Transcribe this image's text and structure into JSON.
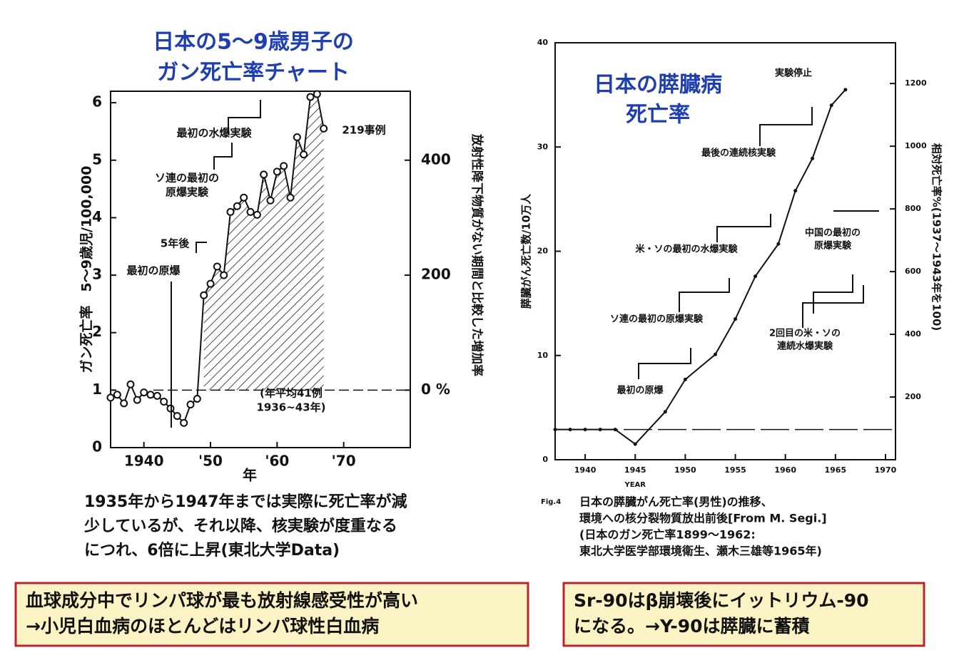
{
  "chart_data": [
    {
      "type": "line",
      "title": [
        "日本の5～9歳男子の",
        "ガン死亡率チャート"
      ],
      "ylabel": "ガン死亡率　5～9歳児/100,000",
      "y2label": "放射性降下物質がない期間と比較した増加率",
      "xlabel": "年",
      "x": [
        1935,
        1936,
        1937,
        1938,
        1939,
        1940,
        1941,
        1942,
        1943,
        1944,
        1945,
        1946,
        1947,
        1948,
        1949,
        1950,
        1951,
        1952,
        1953,
        1954,
        1955,
        1956,
        1957,
        1958,
        1959,
        1960,
        1961,
        1962,
        1963,
        1964,
        1965,
        1966,
        1967
      ],
      "values": [
        0.87,
        0.92,
        0.77,
        1.1,
        0.83,
        0.96,
        0.92,
        0.9,
        0.8,
        0.68,
        0.55,
        0.43,
        0.75,
        0.85,
        2.65,
        2.85,
        3.15,
        3.0,
        4.1,
        4.2,
        4.35,
        4.1,
        4.05,
        4.75,
        4.3,
        4.8,
        4.9,
        4.35,
        5.4,
        5.1,
        6.1,
        6.15,
        5.55
      ],
      "color": "#111",
      "marker": "open-circle",
      "shaded_from": 1949,
      "xlim": [
        1935,
        1980
      ],
      "xticks": [
        1940,
        {
          "value": 1950,
          "label": "'50"
        },
        {
          "value": 1960,
          "label": "'60"
        },
        {
          "value": 1970,
          "label": "'70"
        }
      ],
      "ylim": [
        0,
        6.2
      ],
      "yticks": [
        0,
        1,
        2,
        3,
        4,
        5,
        6
      ],
      "y2lim": [
        -100,
        520
      ],
      "y2ticks": [
        {
          "value": 0,
          "label": "0 %"
        },
        200,
        400
      ],
      "annotations": [
        [
          "最初の水爆実験"
        ],
        [
          "ソ連の最初の",
          "原爆実験"
        ],
        [
          "5年後"
        ],
        [
          "最初の原爆"
        ],
        [
          "219事例"
        ],
        [
          "(年平均41例",
          "1936~43年)"
        ]
      ]
    },
    {
      "type": "line",
      "title": [
        "日本の膵臓病",
        "死亡率"
      ],
      "ylabel": "膵臓がん死亡数/10万人",
      "y2label": "相対死亡率%(1937～1943年を100)",
      "xlabel": "YEAR",
      "x": [
        1937,
        1938.5,
        1940,
        1941.5,
        1943,
        1945,
        1948,
        1950,
        1953,
        1955,
        1957,
        1959.3,
        1961,
        1962.7,
        1964.6,
        1966
      ],
      "values": [
        2.9,
        2.9,
        2.9,
        2.9,
        2.9,
        1.5,
        4.6,
        7.7,
        10.1,
        13.5,
        17.6,
        20.7,
        25.8,
        28.9,
        34,
        35.5
      ],
      "color": "#111",
      "marker": "dot",
      "reference": 2.9,
      "xlim": [
        1937,
        1971
      ],
      "xticks": [
        1940,
        1945,
        1950,
        1955,
        1960,
        1965,
        1970
      ],
      "ylim": [
        0,
        40
      ],
      "yticks": [
        0,
        10,
        20,
        30,
        40
      ],
      "y2lim": [
        0,
        1330
      ],
      "y2ticks": [
        200,
        400,
        600,
        800,
        1000,
        1200
      ],
      "annotations": [
        [
          "実験停止"
        ],
        [
          "最後の連続核実験"
        ],
        [
          "中国の最初の",
          "原爆実験"
        ],
        [
          "米・ソの最初の水爆実験"
        ],
        [
          "ソ連の最初の原爆実験"
        ],
        [
          "2回目の米・ソの",
          "連続水爆実験"
        ],
        [
          "最初の原爆"
        ]
      ]
    }
  ],
  "captions": {
    "left": [
      "1935年から1947年までは実際に死亡率が減",
      "少しているが、それ以降、核実験が度重なる",
      "につれ、6倍に上昇(東北大学Data)"
    ],
    "right_label": "Fig.4",
    "right": [
      "日本の膵臓がん死亡率(男性)の推移、",
      "環境への核分裂物質放出前後[From M. Segi.]",
      "(日本のガン死亡率1899～1962:",
      "東北大学医学部環境衛生、瀬木三雄等1965年)"
    ]
  },
  "notes": [
    [
      "血球成分中でリンパ球が最も放射線感受性が高い",
      "→小児白血病のほとんどはリンパ球性白血病"
    ],
    [
      "Sr-90はβ崩壊後にイットリウム-90",
      "になる。→Y-90は膵臓に蓄積"
    ]
  ]
}
